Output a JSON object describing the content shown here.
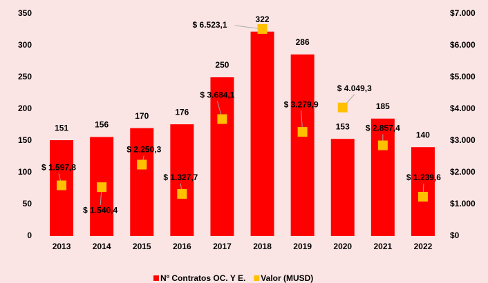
{
  "chart_data": {
    "type": "bar",
    "categories": [
      "2013",
      "2014",
      "2015",
      "2016",
      "2017",
      "2018",
      "2019",
      "2020",
      "2021",
      "2022"
    ],
    "series": [
      {
        "name": "Nº Contratos OC. Y E.",
        "color": "#ff0000",
        "values": [
          151,
          156,
          170,
          176,
          250,
          322,
          286,
          153,
          185,
          140
        ]
      },
      {
        "name": "Valor (MUSD)",
        "color": "#ffc000",
        "axis": "y2",
        "values": [
          1597.8,
          1540.4,
          2250.3,
          1327.7,
          3684.1,
          6523.1,
          3279.9,
          4049.3,
          2857.4,
          1239.6
        ],
        "value_labels": [
          "$ 1.597,8",
          "$ 1.540,4",
          "$ 2.250,3",
          "$ 1.327,7",
          "$ 3.684,1",
          "$ 6.523,1",
          "$ 3.279,9",
          "$ 4.049,3",
          "$ 2.857,4",
          "$ 1.239,6"
        ]
      }
    ],
    "ylim": [
      0,
      350
    ],
    "yticks": [
      0,
      50,
      100,
      150,
      200,
      250,
      300,
      350
    ],
    "y2lim": [
      0,
      7000
    ],
    "y2ticks": [
      {
        "value": 0,
        "label": "$0"
      },
      {
        "value": 1000,
        "label": "$1.000"
      },
      {
        "value": 2000,
        "label": "$2.000"
      },
      {
        "value": 3000,
        "label": "$3.000"
      },
      {
        "value": 4000,
        "label": "$4.000"
      },
      {
        "value": 5000,
        "label": "$5.000"
      },
      {
        "value": 6000,
        "label": "$6.000"
      },
      {
        "value": 7000,
        "label": "$7.000"
      }
    ],
    "grid": false,
    "legend": "bottom"
  }
}
